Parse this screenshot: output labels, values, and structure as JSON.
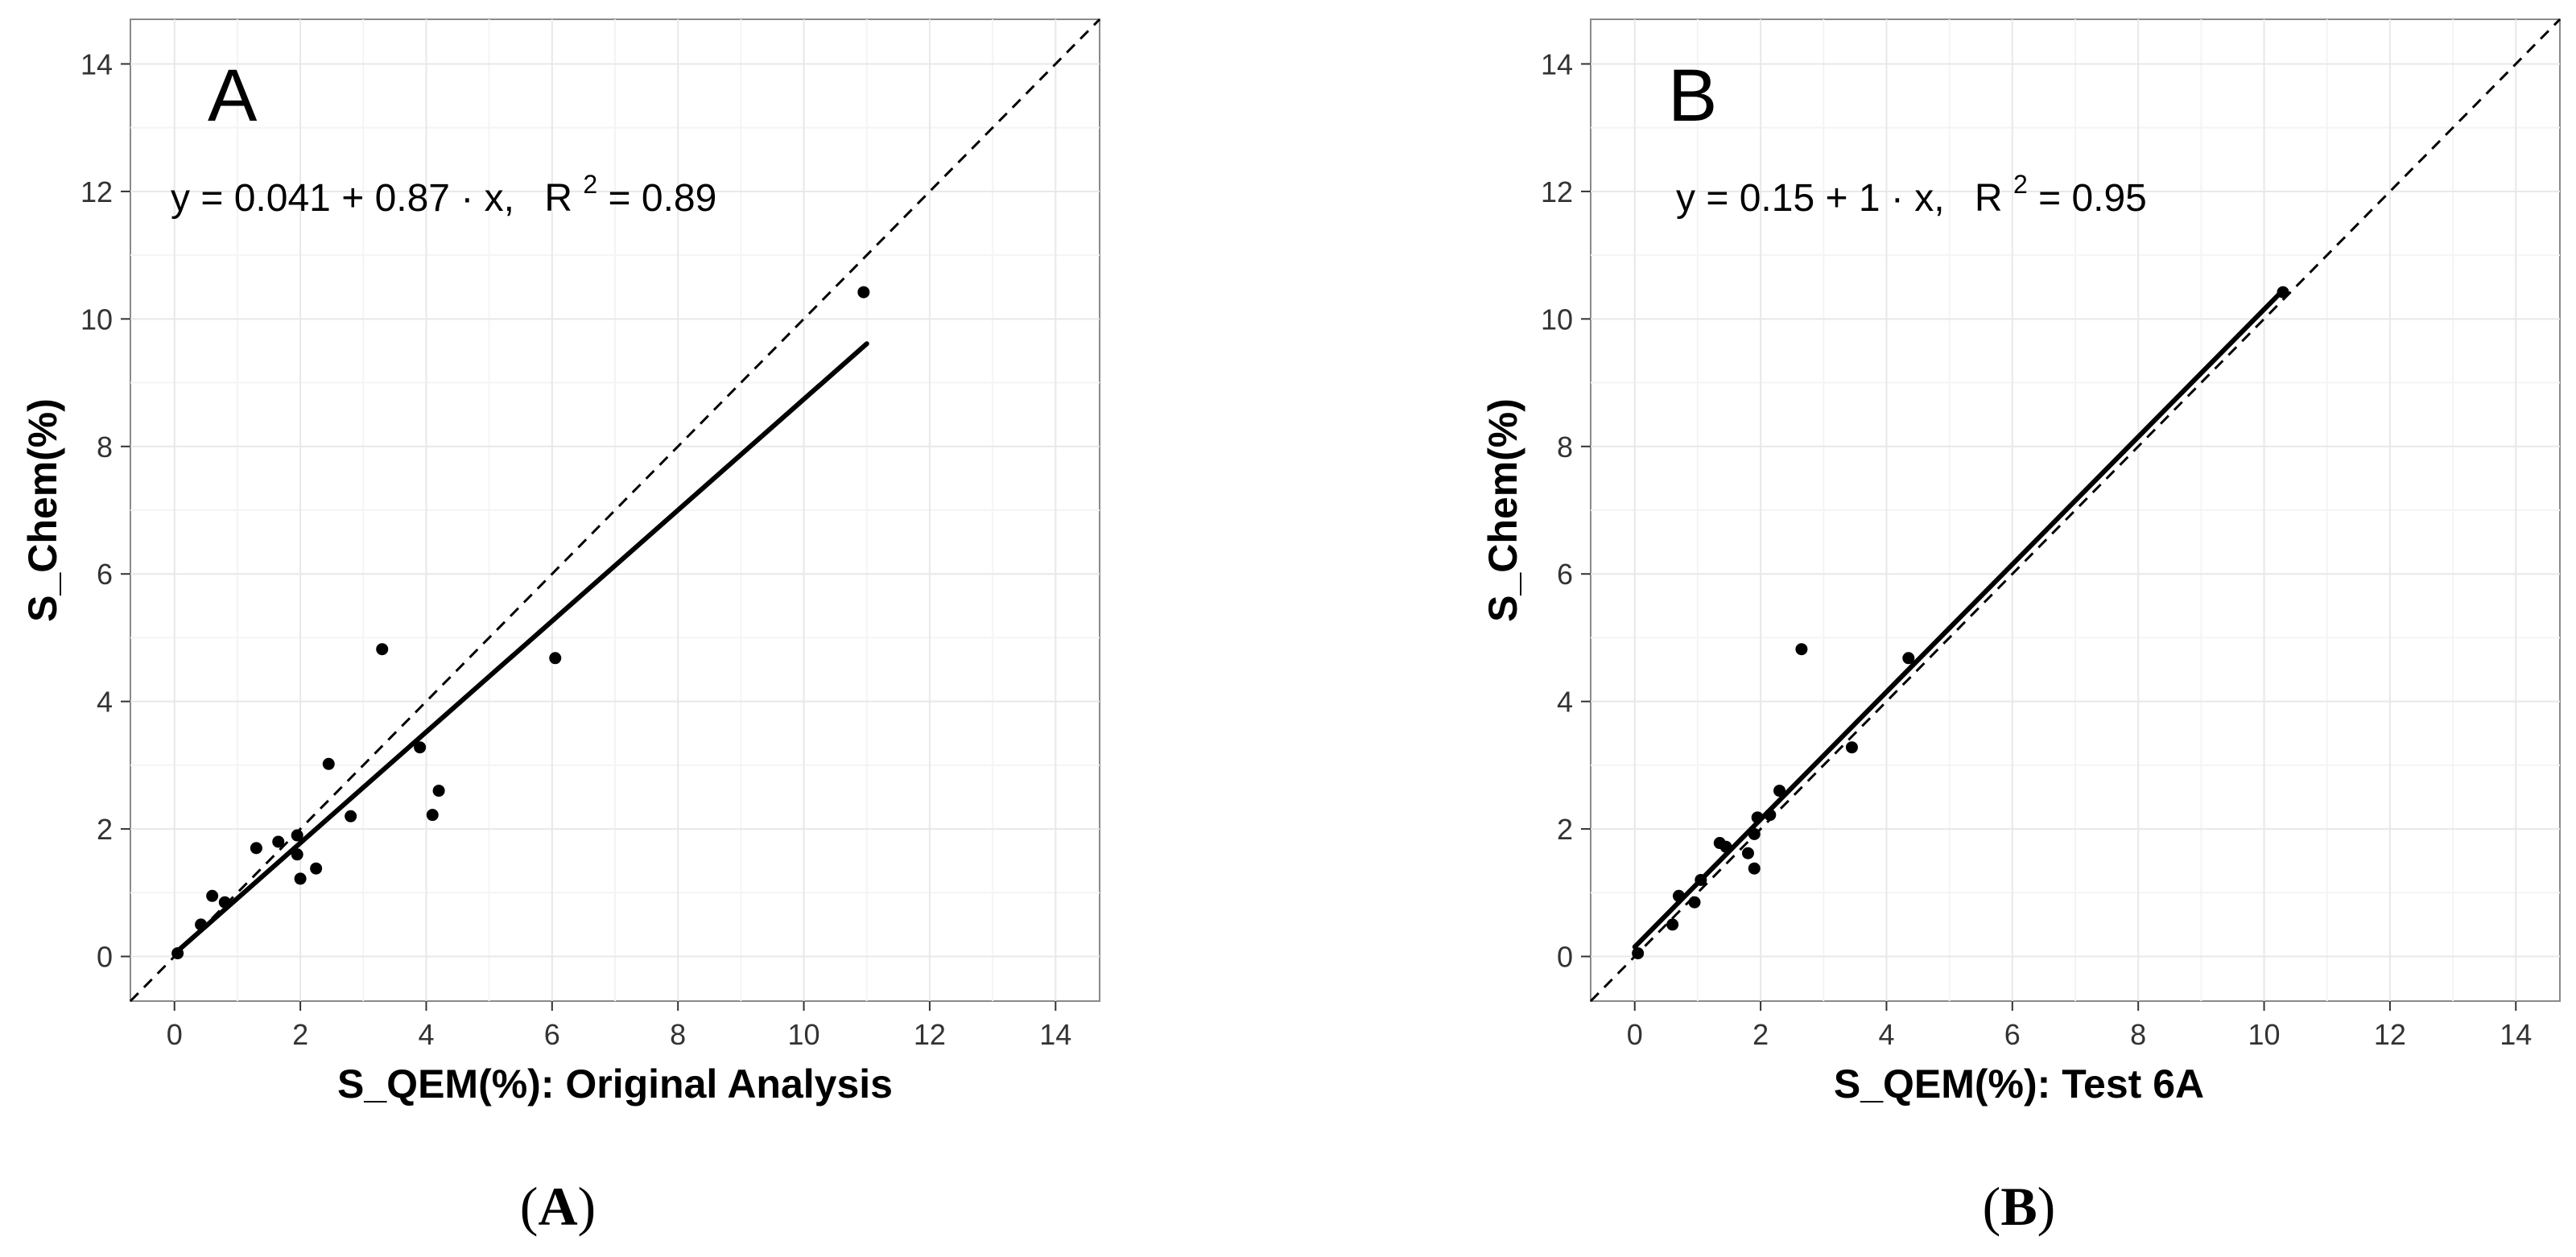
{
  "chart_data": [
    {
      "type": "scatter",
      "panel_label": "A",
      "caption": "(A)",
      "caption_letter": "A",
      "equation": {
        "lhs": "y",
        "eq": "=",
        "intercept": "0.041",
        "op": "+",
        "slope": "0.87",
        "dot": "·",
        "var": "x,",
        "r2_label": "R",
        "r2_sup": "2",
        "r2_rest": " = 0.89"
      },
      "xlabel": "S_QEM(%): Original Analysis",
      "ylabel": "S_Chem(%)",
      "xlim": [
        -0.7,
        14.7
      ],
      "ylim": [
        -0.7,
        14.7
      ],
      "xticks": [
        0,
        2,
        4,
        6,
        8,
        10,
        12,
        14
      ],
      "yticks": [
        0,
        2,
        4,
        6,
        8,
        10,
        12,
        14
      ],
      "tick_labels": [
        "0",
        "2",
        "4",
        "6",
        "8",
        "10",
        "12",
        "14"
      ],
      "fit_line": {
        "intercept": 0.041,
        "slope": 0.87,
        "x_range": [
          0.0,
          11.0
        ]
      },
      "identity_line": true,
      "points": [
        {
          "x": 0.05,
          "y": 0.05
        },
        {
          "x": 0.42,
          "y": 0.5
        },
        {
          "x": 0.6,
          "y": 0.95
        },
        {
          "x": 0.8,
          "y": 0.85
        },
        {
          "x": 1.3,
          "y": 1.7
        },
        {
          "x": 1.65,
          "y": 1.8
        },
        {
          "x": 1.95,
          "y": 1.9
        },
        {
          "x": 1.95,
          "y": 1.6
        },
        {
          "x": 2.0,
          "y": 1.22
        },
        {
          "x": 2.25,
          "y": 1.38
        },
        {
          "x": 2.45,
          "y": 3.02
        },
        {
          "x": 2.8,
          "y": 2.2
        },
        {
          "x": 3.3,
          "y": 4.82
        },
        {
          "x": 3.9,
          "y": 3.28
        },
        {
          "x": 4.1,
          "y": 2.22
        },
        {
          "x": 4.2,
          "y": 2.6
        },
        {
          "x": 6.05,
          "y": 4.68
        },
        {
          "x": 10.95,
          "y": 10.42
        }
      ]
    },
    {
      "type": "scatter",
      "panel_label": "B",
      "caption": "(B)",
      "caption_letter": "B",
      "equation": {
        "lhs": "y",
        "eq": "=",
        "intercept": "0.15",
        "op": "+",
        "slope": "1",
        "dot": "·",
        "var": "x,",
        "r2_label": "R",
        "r2_sup": "2",
        "r2_rest": " = 0.95"
      },
      "xlabel": "S_QEM(%): Test 6A",
      "ylabel": "S_Chem(%)",
      "xlim": [
        -0.7,
        14.7
      ],
      "ylim": [
        -0.7,
        14.7
      ],
      "xticks": [
        0,
        2,
        4,
        6,
        8,
        10,
        12,
        14
      ],
      "yticks": [
        0,
        2,
        4,
        6,
        8,
        10,
        12,
        14
      ],
      "tick_labels": [
        "0",
        "2",
        "4",
        "6",
        "8",
        "10",
        "12",
        "14"
      ],
      "fit_line": {
        "intercept": 0.15,
        "slope": 1.0,
        "x_range": [
          0.0,
          10.3
        ]
      },
      "identity_line": true,
      "points": [
        {
          "x": 0.05,
          "y": 0.05
        },
        {
          "x": 0.6,
          "y": 0.5
        },
        {
          "x": 0.7,
          "y": 0.95
        },
        {
          "x": 0.95,
          "y": 0.85
        },
        {
          "x": 1.05,
          "y": 1.2
        },
        {
          "x": 1.35,
          "y": 1.78
        },
        {
          "x": 1.45,
          "y": 1.72
        },
        {
          "x": 1.8,
          "y": 1.62
        },
        {
          "x": 1.9,
          "y": 1.38
        },
        {
          "x": 1.9,
          "y": 1.92
        },
        {
          "x": 1.95,
          "y": 2.18
        },
        {
          "x": 2.15,
          "y": 2.22
        },
        {
          "x": 2.3,
          "y": 2.6
        },
        {
          "x": 2.65,
          "y": 4.82
        },
        {
          "x": 3.45,
          "y": 3.28
        },
        {
          "x": 4.35,
          "y": 4.68
        },
        {
          "x": 10.3,
          "y": 10.42
        }
      ]
    }
  ]
}
